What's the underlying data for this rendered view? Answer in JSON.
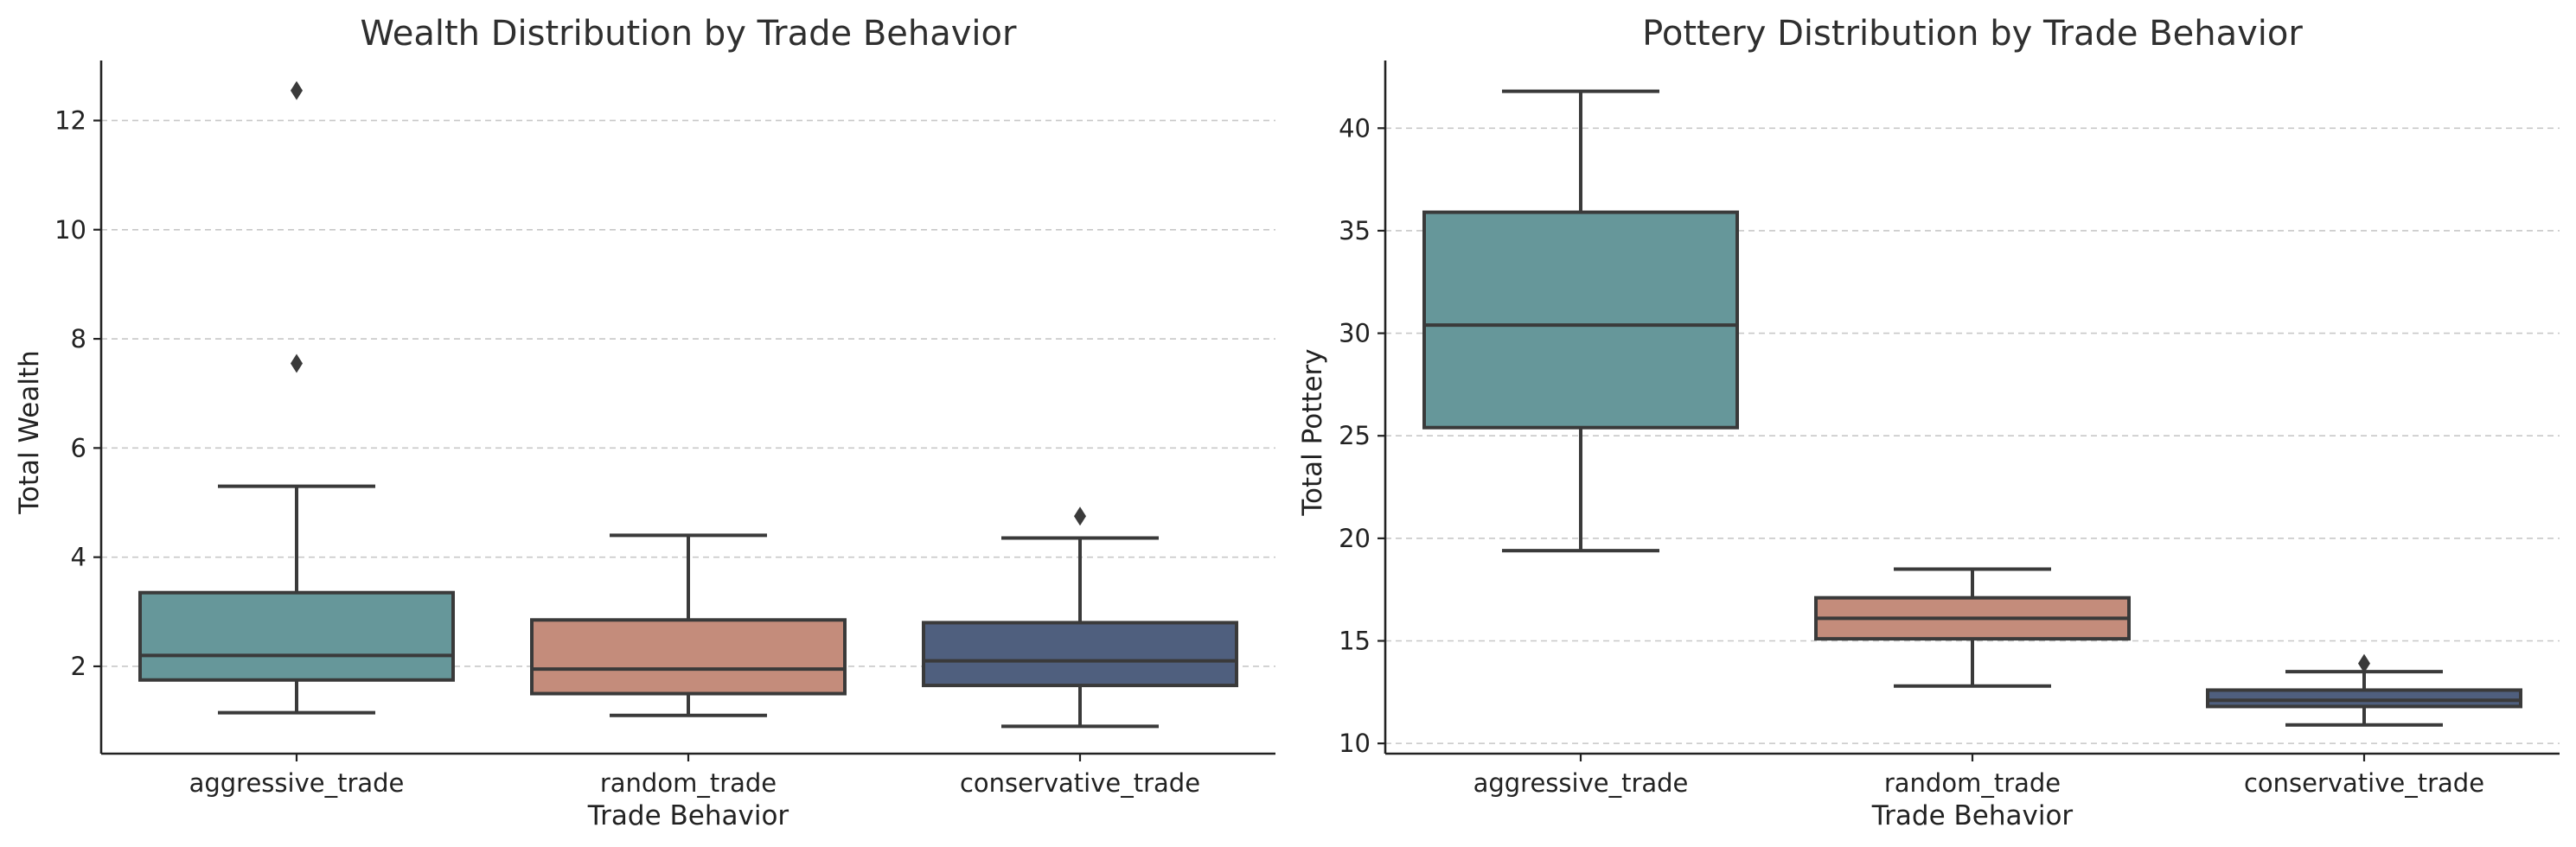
{
  "colors": {
    "aggressive_trade": "#66979a",
    "random_trade": "#c48c7b",
    "conservative_trade": "#4f5f7e",
    "line": "#3a3a3a",
    "grid": "#c8c8c8"
  },
  "chart_data": [
    {
      "type": "box",
      "title": "Wealth Distribution by Trade Behavior",
      "xlabel": "Trade Behavior",
      "ylabel": "Total Wealth",
      "ylim": [
        0.4,
        13.1
      ],
      "yticks": [
        2,
        4,
        6,
        8,
        10,
        12
      ],
      "grid": "y",
      "categories": [
        "aggressive_trade",
        "random_trade",
        "conservative_trade"
      ],
      "boxes": [
        {
          "category": "aggressive_trade",
          "whisker_low": 1.15,
          "q1": 1.75,
          "median": 2.2,
          "q3": 3.35,
          "whisker_high": 5.3,
          "outliers": [
            7.55,
            12.55
          ]
        },
        {
          "category": "random_trade",
          "whisker_low": 1.1,
          "q1": 1.5,
          "median": 1.95,
          "q3": 2.85,
          "whisker_high": 4.4,
          "outliers": []
        },
        {
          "category": "conservative_trade",
          "whisker_low": 0.9,
          "q1": 1.65,
          "median": 2.1,
          "q3": 2.8,
          "whisker_high": 4.35,
          "outliers": [
            4.75
          ]
        }
      ]
    },
    {
      "type": "box",
      "title": "Pottery Distribution by Trade Behavior",
      "xlabel": "Trade Behavior",
      "ylabel": "Total Pottery",
      "ylim": [
        9.5,
        43.3
      ],
      "yticks": [
        10,
        15,
        20,
        25,
        30,
        35,
        40
      ],
      "grid": "y",
      "categories": [
        "aggressive_trade",
        "random_trade",
        "conservative_trade"
      ],
      "boxes": [
        {
          "category": "aggressive_trade",
          "whisker_low": 19.4,
          "q1": 25.4,
          "median": 30.4,
          "q3": 35.9,
          "whisker_high": 41.8,
          "outliers": []
        },
        {
          "category": "random_trade",
          "whisker_low": 12.8,
          "q1": 15.1,
          "median": 16.1,
          "q3": 17.1,
          "whisker_high": 18.5,
          "outliers": []
        },
        {
          "category": "conservative_trade",
          "whisker_low": 10.9,
          "q1": 11.8,
          "median": 12.1,
          "q3": 12.6,
          "whisker_high": 13.5,
          "outliers": [
            13.9
          ]
        }
      ]
    }
  ]
}
